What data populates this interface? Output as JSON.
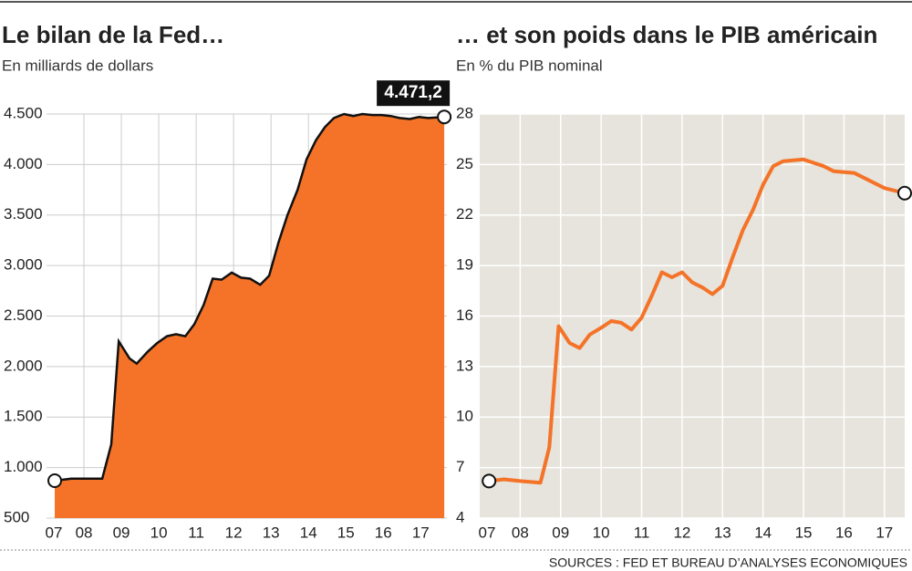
{
  "chart_data": [
    {
      "type": "area",
      "title": "Le bilan de la Fed…",
      "subtitle": "En milliards de dollars",
      "xlim": [
        2007,
        2017.7
      ],
      "ylim": [
        500,
        4500
      ],
      "xticks": [
        {
          "value": 2007,
          "label": "07"
        },
        {
          "value": 2008,
          "label": "08"
        },
        {
          "value": 2009,
          "label": "09"
        },
        {
          "value": 2010,
          "label": "10"
        },
        {
          "value": 2011,
          "label": "11"
        },
        {
          "value": 2012,
          "label": "12"
        },
        {
          "value": 2013,
          "label": "13"
        },
        {
          "value": 2014,
          "label": "14"
        },
        {
          "value": 2015,
          "label": "15"
        },
        {
          "value": 2016,
          "label": "16"
        },
        {
          "value": 2017,
          "label": "17"
        }
      ],
      "yticks": [
        500,
        {
          "value": 1000,
          "label": "1.000"
        },
        {
          "value": 1500,
          "label": "1.500"
        },
        {
          "value": 2000,
          "label": "2.000"
        },
        {
          "value": 2500,
          "label": "2.500"
        },
        {
          "value": 3000,
          "label": "3.000"
        },
        {
          "value": 3500,
          "label": "3.500"
        },
        {
          "value": 4000,
          "label": "4.000"
        },
        {
          "value": 4500,
          "label": "4.500"
        }
      ],
      "grid": true,
      "series": [
        {
          "color": "#f47328",
          "x": [
            2007.22,
            2007.66,
            2008.07,
            2008.49,
            2008.73,
            2008.93,
            2009.22,
            2009.41,
            2009.71,
            2009.95,
            2010.22,
            2010.46,
            2010.71,
            2010.95,
            2011.2,
            2011.44,
            2011.68,
            2011.95,
            2012.2,
            2012.44,
            2012.71,
            2012.95,
            2013.2,
            2013.44,
            2013.71,
            2013.95,
            2014.2,
            2014.44,
            2014.68,
            2014.95,
            2015.2,
            2015.44,
            2015.71,
            2015.95,
            2016.2,
            2016.44,
            2016.71,
            2016.95,
            2017.2,
            2017.63
          ],
          "values": [
            870,
            890,
            890,
            890,
            1230,
            2250,
            2080,
            2030,
            2150,
            2230,
            2300,
            2320,
            2300,
            2420,
            2610,
            2870,
            2860,
            2930,
            2880,
            2870,
            2810,
            2900,
            3230,
            3500,
            3750,
            4050,
            4240,
            4370,
            4460,
            4500,
            4480,
            4500,
            4490,
            4490,
            4480,
            4460,
            4450,
            4470,
            4460,
            4471.2
          ],
          "value_labels": [
            null,
            null,
            null,
            null,
            null,
            null,
            null,
            null,
            null,
            null,
            null,
            null,
            null,
            null,
            null,
            null,
            null,
            null,
            null,
            null,
            null,
            null,
            null,
            null,
            null,
            null,
            null,
            null,
            null,
            null,
            null,
            null,
            null,
            null,
            null,
            null,
            null,
            null,
            null,
            "4.471,2"
          ]
        }
      ]
    },
    {
      "type": "line",
      "title": "… et son poids dans le PIB américain",
      "subtitle": "En % du PIB nominal",
      "xlim": [
        2007,
        2017.5
      ],
      "ylim": [
        4,
        28
      ],
      "xticks": [
        {
          "value": 2007,
          "label": "07"
        },
        {
          "value": 2008,
          "label": "08"
        },
        {
          "value": 2009,
          "label": "09"
        },
        {
          "value": 2010,
          "label": "10"
        },
        {
          "value": 2011,
          "label": "11"
        },
        {
          "value": 2012,
          "label": "12"
        },
        {
          "value": 2013,
          "label": "13"
        },
        {
          "value": 2014,
          "label": "14"
        },
        {
          "value": 2015,
          "label": "15"
        },
        {
          "value": 2016,
          "label": "16"
        },
        {
          "value": 2017,
          "label": "17"
        }
      ],
      "yticks": [
        4,
        7,
        10,
        13,
        16,
        19,
        22,
        25,
        28
      ],
      "grid": true,
      "series": [
        {
          "color": "#f47328",
          "x": [
            2007.23,
            2007.6,
            2008.0,
            2008.5,
            2008.72,
            2008.95,
            2009.22,
            2009.47,
            2009.72,
            2010.0,
            2010.25,
            2010.5,
            2010.75,
            2011.0,
            2011.25,
            2011.5,
            2011.75,
            2012.0,
            2012.25,
            2012.5,
            2012.75,
            2013.0,
            2013.25,
            2013.5,
            2013.75,
            2014.0,
            2014.25,
            2014.5,
            2015.0,
            2015.5,
            2015.75,
            2016.25,
            2016.5,
            2016.75,
            2017.0,
            2017.5
          ],
          "values": [
            6.2,
            6.3,
            6.2,
            6.1,
            8.2,
            15.4,
            14.4,
            14.1,
            14.9,
            15.3,
            15.7,
            15.6,
            15.2,
            15.9,
            17.2,
            18.6,
            18.3,
            18.6,
            18.0,
            17.7,
            17.3,
            17.8,
            19.5,
            21.1,
            22.3,
            23.8,
            24.9,
            25.2,
            25.3,
            24.9,
            24.6,
            24.5,
            24.2,
            23.9,
            23.6,
            23.3
          ]
        }
      ]
    }
  ],
  "source": "SOURCES : FED ET BUREAU D’ANALYSES ECONOMIQUES"
}
